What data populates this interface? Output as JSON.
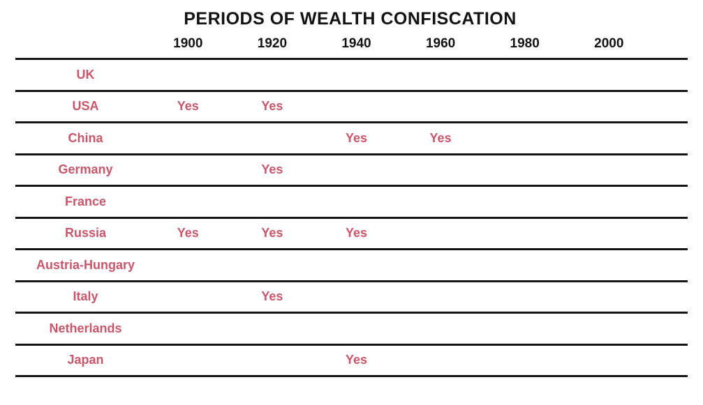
{
  "title": "PERIODS OF WEALTH CONFISCATION",
  "chart_data": {
    "type": "table",
    "title": "PERIODS OF WEALTH CONFISCATION",
    "columns": [
      "1900",
      "1920",
      "1940",
      "1960",
      "1980",
      "2000"
    ],
    "rows": [
      {
        "country": "UK",
        "cells": [
          "",
          "",
          "",
          "",
          "",
          ""
        ]
      },
      {
        "country": "USA",
        "cells": [
          "Yes",
          "Yes",
          "",
          "",
          "",
          ""
        ]
      },
      {
        "country": "China",
        "cells": [
          "",
          "",
          "Yes",
          "Yes",
          "",
          ""
        ]
      },
      {
        "country": "Germany",
        "cells": [
          "",
          "Yes",
          "",
          "",
          "",
          ""
        ]
      },
      {
        "country": "France",
        "cells": [
          "",
          "",
          "",
          "",
          "",
          ""
        ]
      },
      {
        "country": "Russia",
        "cells": [
          "Yes",
          "Yes",
          "Yes",
          "",
          "",
          ""
        ]
      },
      {
        "country": "Austria-Hungary",
        "cells": [
          "",
          "",
          "",
          "",
          "",
          ""
        ]
      },
      {
        "country": "Italy",
        "cells": [
          "",
          "Yes",
          "",
          "",
          "",
          ""
        ]
      },
      {
        "country": "Netherlands",
        "cells": [
          "",
          "",
          "",
          "",
          "",
          ""
        ]
      },
      {
        "country": "Japan",
        "cells": [
          "",
          "",
          "Yes",
          "",
          "",
          ""
        ]
      }
    ],
    "colors": {
      "yes_text": "#c9566b",
      "line": "#141414",
      "text": "#1a1a1a",
      "background": "#ffffff"
    },
    "layout": {
      "grid": "horizontal-rules-only",
      "legend": "none"
    }
  }
}
